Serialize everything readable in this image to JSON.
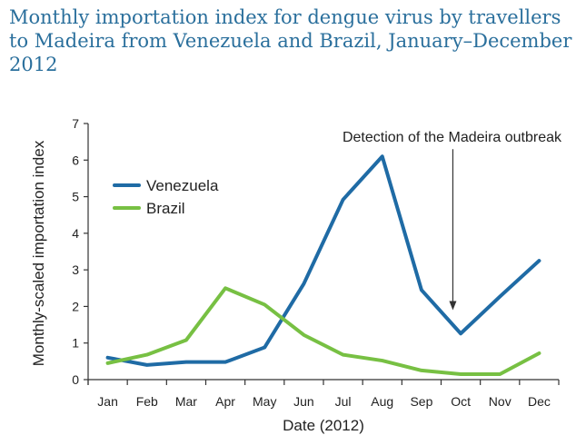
{
  "chart_data": {
    "type": "line",
    "title": "Monthly importation index for dengue virus by travellers to Madeira from Venezuela and Brazil, January–December 2012",
    "xlabel": "Date (2012)",
    "ylabel": "Monthly-scaled importation index",
    "categories": [
      "Jan",
      "Feb",
      "Mar",
      "Apr",
      "May",
      "Jun",
      "Jul",
      "Aug",
      "Sep",
      "Oct",
      "Nov",
      "Dec"
    ],
    "ylim": [
      0,
      7
    ],
    "yticks": [
      0,
      1,
      2,
      3,
      4,
      5,
      6,
      7
    ],
    "yticks_labels": [
      "0",
      "1",
      "2",
      "3",
      "4",
      "5",
      "6",
      "7"
    ],
    "series": [
      {
        "name": "Venezuela",
        "color": "#1f6ba5",
        "values": [
          0.6,
          0.4,
          0.48,
          0.48,
          0.88,
          2.62,
          4.92,
          6.1,
          2.45,
          1.26,
          2.27,
          3.25
        ]
      },
      {
        "name": "Brazil",
        "color": "#77c043",
        "values": [
          0.45,
          0.68,
          1.08,
          2.5,
          2.05,
          1.22,
          0.68,
          0.52,
          0.25,
          0.15,
          0.15,
          0.72
        ]
      }
    ],
    "annotation": {
      "text": "Detection of the Madeira outbreak",
      "at_x": 9.3,
      "from_y": 6.3,
      "to_y": 1.9
    },
    "legend_position": "top-left",
    "grid": false
  }
}
